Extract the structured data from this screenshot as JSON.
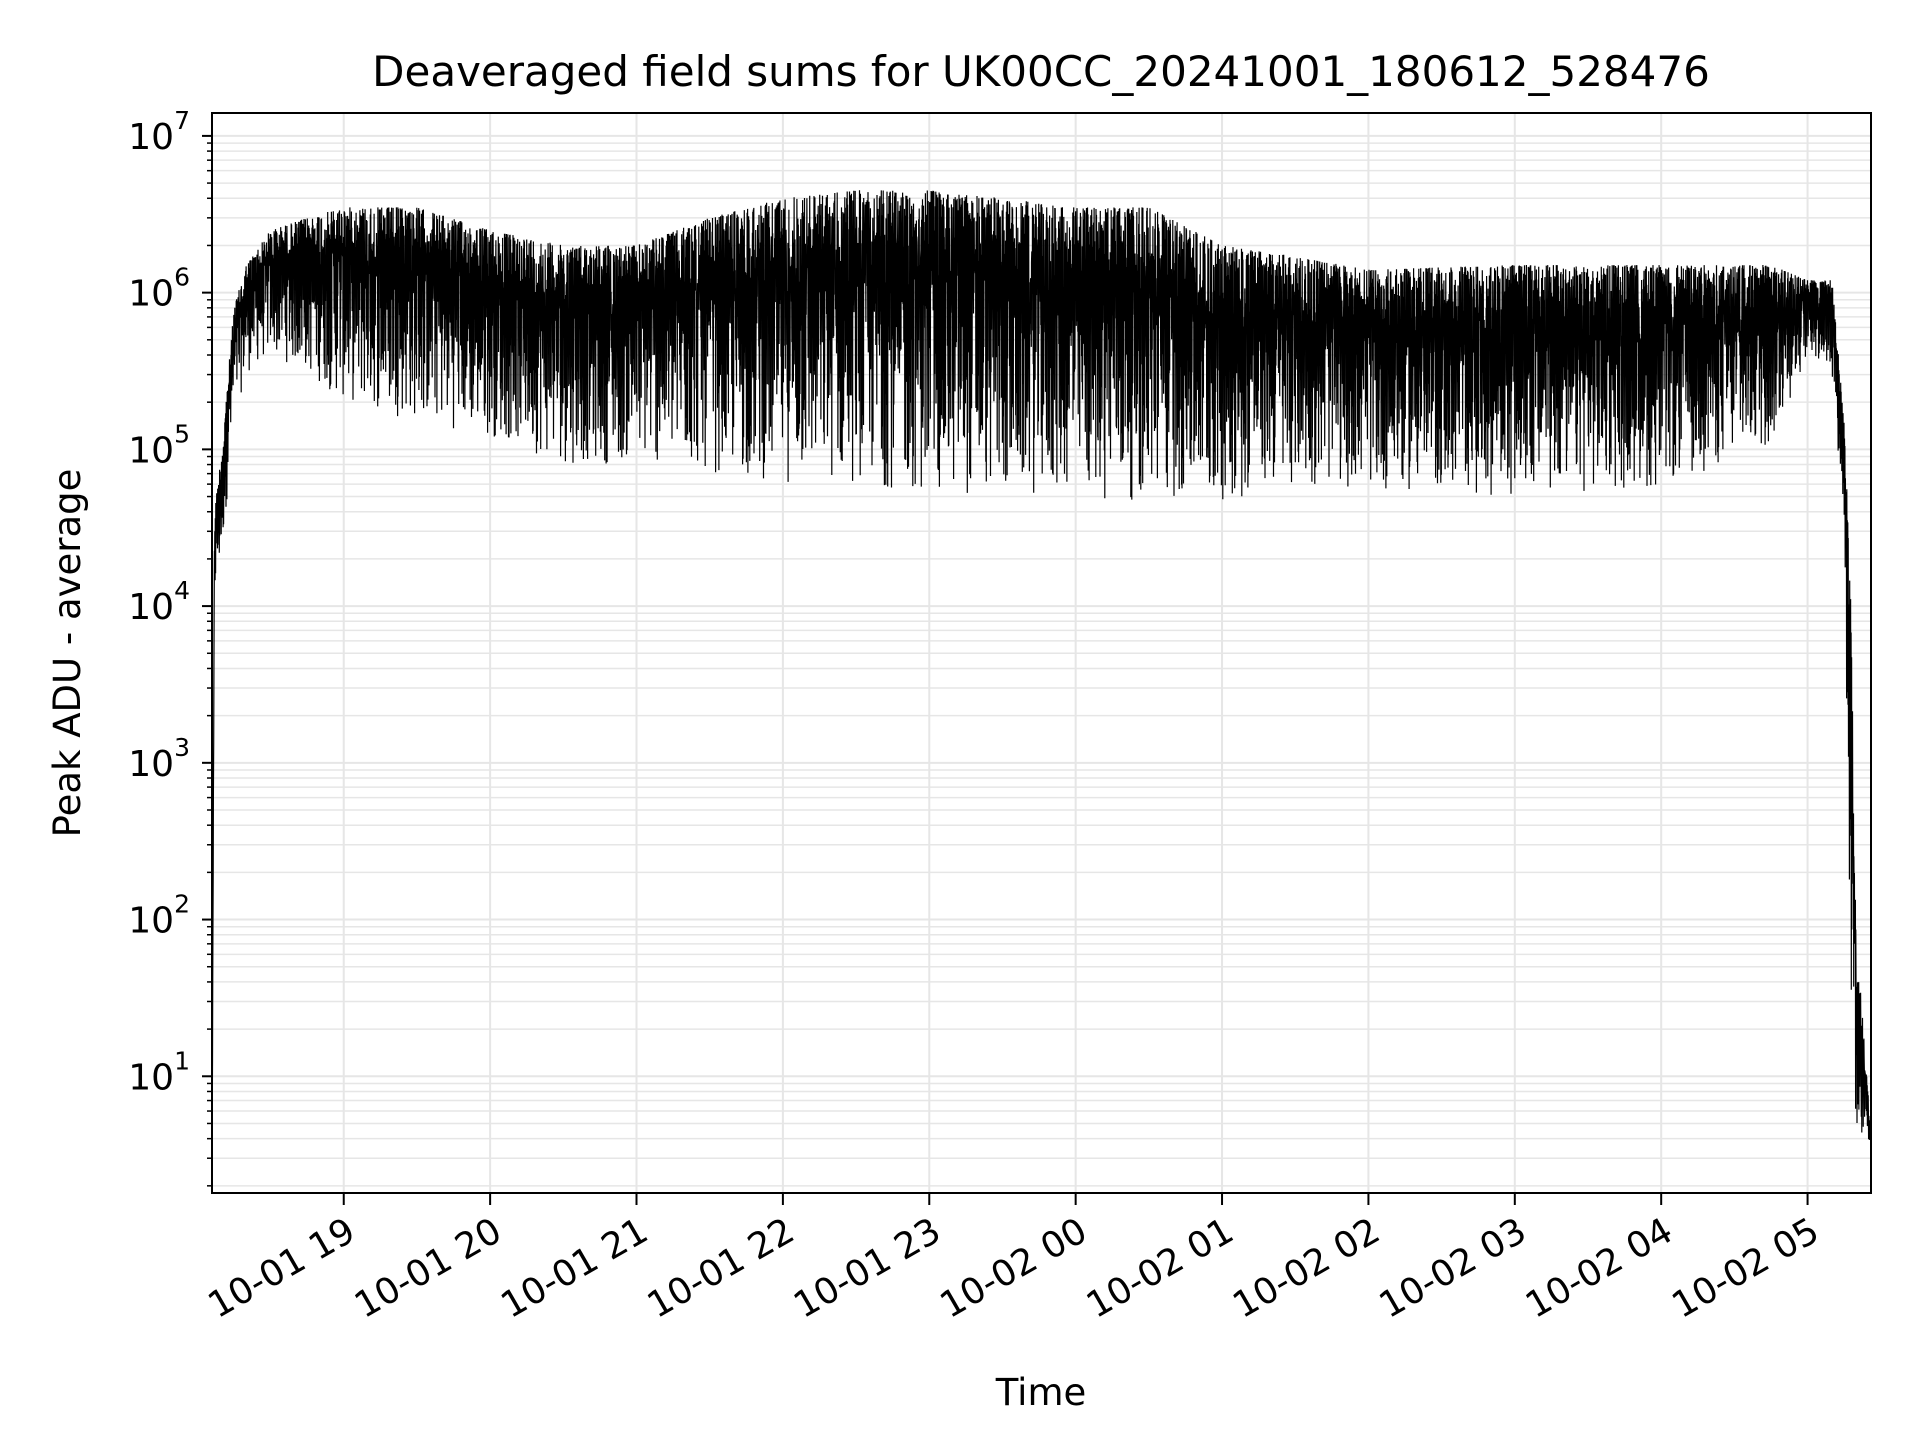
{
  "chart_data": {
    "type": "line",
    "title": "Deaveraged field sums for UK00CC_20241001_180612_528476",
    "xlabel": "Time",
    "ylabel": "Peak ADU - average",
    "yscale": "log",
    "ylim": [
      1.8,
      14000000
    ],
    "xlim": [
      "10-01 18:06",
      "10-02 05:26"
    ],
    "grid": true,
    "line_color": "#000000",
    "grid_color": "#e6e6e6",
    "x_ticks": [
      {
        "t": "10-01 19:00",
        "label": "10-01 19"
      },
      {
        "t": "10-01 20:00",
        "label": "10-01 20"
      },
      {
        "t": "10-01 21:00",
        "label": "10-01 21"
      },
      {
        "t": "10-01 22:00",
        "label": "10-01 22"
      },
      {
        "t": "10-01 23:00",
        "label": "10-01 23"
      },
      {
        "t": "10-02 00:00",
        "label": "10-02 00"
      },
      {
        "t": "10-02 01:00",
        "label": "10-02 01"
      },
      {
        "t": "10-02 02:00",
        "label": "10-02 02"
      },
      {
        "t": "10-02 03:00",
        "label": "10-02 03"
      },
      {
        "t": "10-02 04:00",
        "label": "10-02 04"
      },
      {
        "t": "10-02 05:00",
        "label": "10-02 05"
      }
    ],
    "y_ticks": [
      {
        "value": 10,
        "base": "10",
        "exp": "1"
      },
      {
        "value": 100,
        "base": "10",
        "exp": "2"
      },
      {
        "value": 1000,
        "base": "10",
        "exp": "3"
      },
      {
        "value": 10000,
        "base": "10",
        "exp": "4"
      },
      {
        "value": 100000,
        "base": "10",
        "exp": "5"
      },
      {
        "value": 1000000,
        "base": "10",
        "exp": "6"
      },
      {
        "value": 10000000,
        "base": "10",
        "exp": "7"
      }
    ],
    "series": [
      {
        "envelope": [
          {
            "t": "10-01 18:06",
            "low": 2,
            "high": 2
          },
          {
            "t": "10-01 18:07",
            "low": 10000,
            "high": 40000
          },
          {
            "t": "10-01 18:10",
            "low": 20000,
            "high": 100000
          },
          {
            "t": "10-01 18:15",
            "low": 150000,
            "high": 800000
          },
          {
            "t": "10-01 18:20",
            "low": 300000,
            "high": 1500000
          },
          {
            "t": "10-01 18:30",
            "low": 400000,
            "high": 2500000
          },
          {
            "t": "10-01 18:45",
            "low": 300000,
            "high": 3000000
          },
          {
            "t": "10-01 19:00",
            "low": 200000,
            "high": 3500000
          },
          {
            "t": "10-01 19:30",
            "low": 150000,
            "high": 3500000
          },
          {
            "t": "10-01 20:00",
            "low": 120000,
            "high": 2500000
          },
          {
            "t": "10-01 20:30",
            "low": 80000,
            "high": 2000000
          },
          {
            "t": "10-01 21:00",
            "low": 80000,
            "high": 2000000
          },
          {
            "t": "10-01 21:30",
            "low": 70000,
            "high": 3000000
          },
          {
            "t": "10-01 22:00",
            "low": 60000,
            "high": 4000000
          },
          {
            "t": "10-01 22:30",
            "low": 60000,
            "high": 4500000
          },
          {
            "t": "10-01 23:00",
            "low": 50000,
            "high": 4500000
          },
          {
            "t": "10-01 23:30",
            "low": 50000,
            "high": 4000000
          },
          {
            "t": "10-02 00:00",
            "low": 50000,
            "high": 3500000
          },
          {
            "t": "10-02 00:30",
            "low": 45000,
            "high": 3500000
          },
          {
            "t": "10-02 01:00",
            "low": 45000,
            "high": 2000000
          },
          {
            "t": "10-02 01:30",
            "low": 60000,
            "high": 1700000
          },
          {
            "t": "10-02 02:00",
            "low": 55000,
            "high": 1400000
          },
          {
            "t": "10-02 03:00",
            "low": 50000,
            "high": 1500000
          },
          {
            "t": "10-02 04:00",
            "low": 55000,
            "high": 1500000
          },
          {
            "t": "10-02 04:45",
            "low": 100000,
            "high": 1500000
          },
          {
            "t": "10-02 05:00",
            "low": 400000,
            "high": 1200000
          },
          {
            "t": "10-02 05:10",
            "low": 300000,
            "high": 1200000
          },
          {
            "t": "10-02 05:15",
            "low": 30000,
            "high": 150000
          },
          {
            "t": "10-02 05:18",
            "low": 10,
            "high": 10000
          },
          {
            "t": "10-02 05:20",
            "low": 4,
            "high": 80
          },
          {
            "t": "10-02 05:26",
            "low": 3.8,
            "high": 4.5
          }
        ]
      }
    ]
  }
}
